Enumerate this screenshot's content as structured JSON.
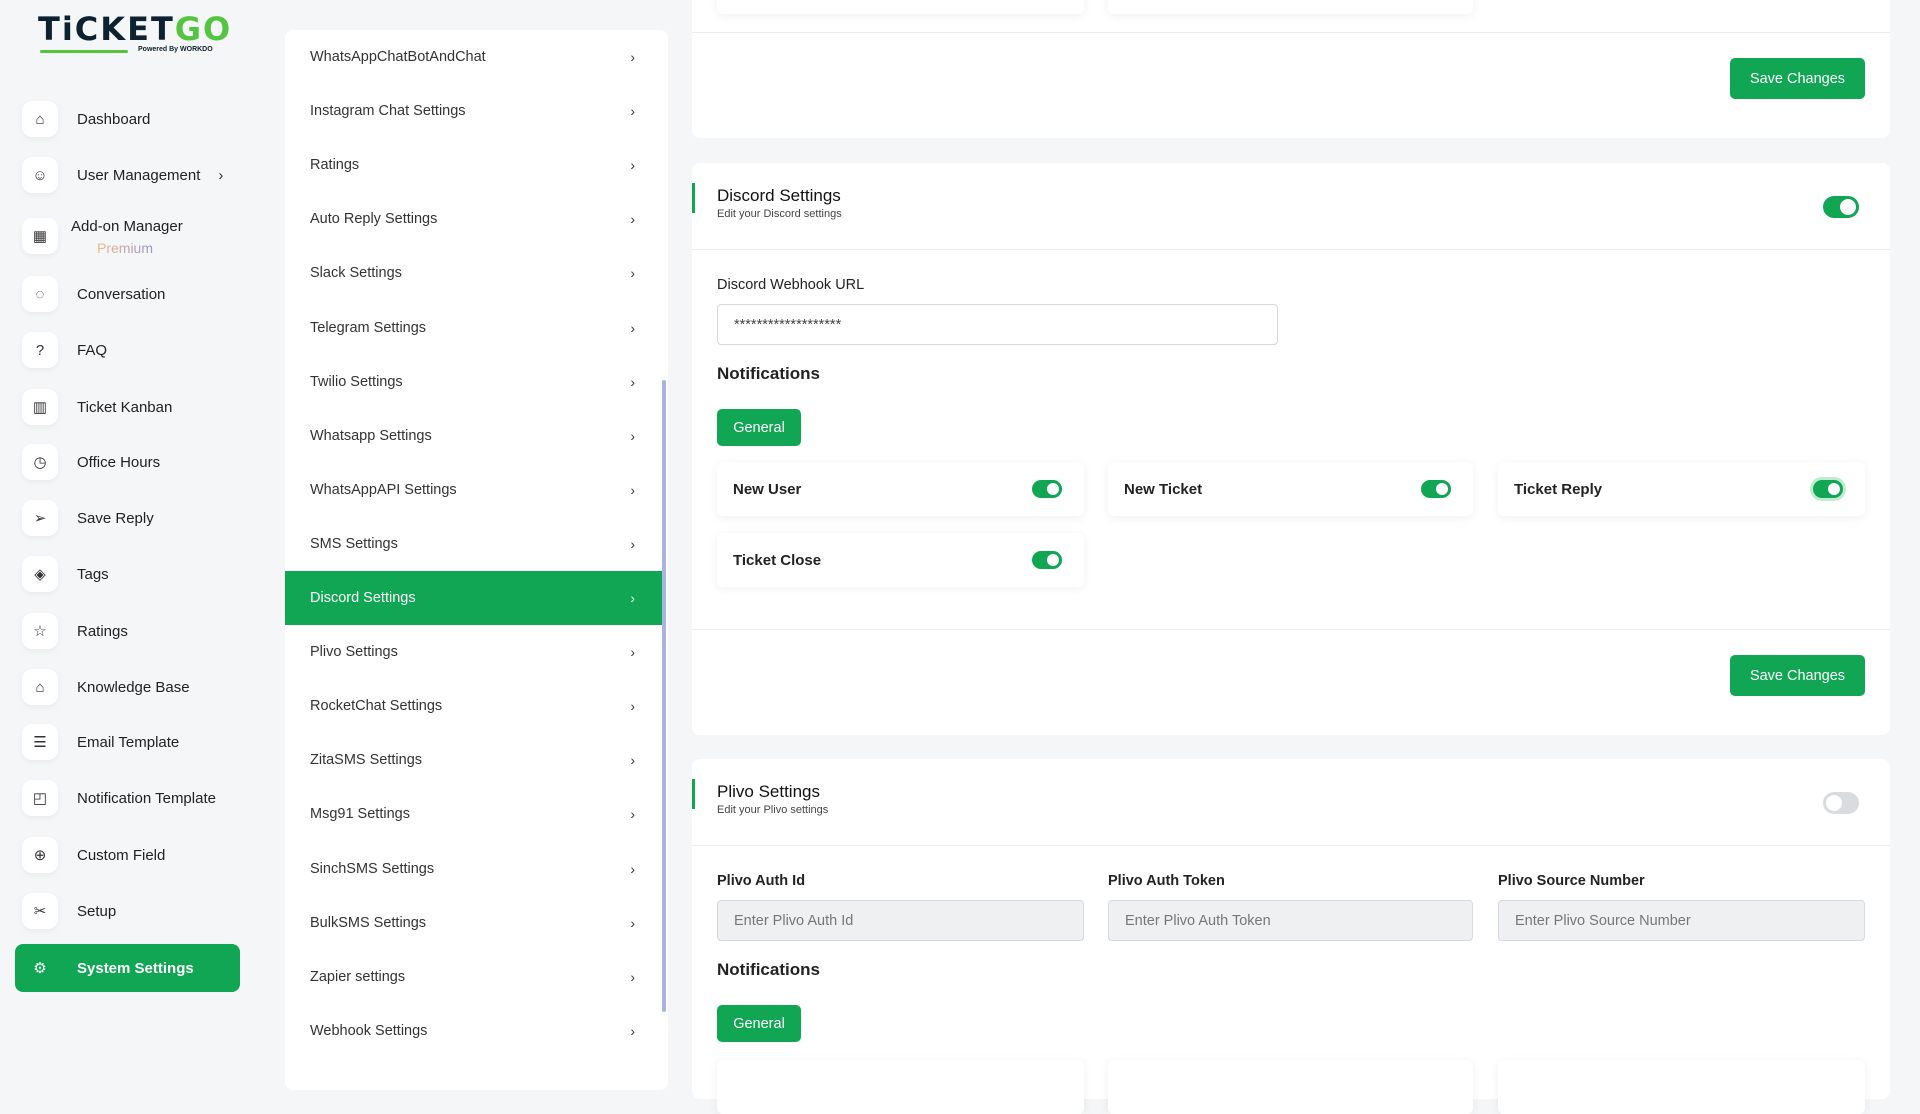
{
  "brand": {
    "name_dark": "TiCKET",
    "name_green": "GO",
    "powered": "Powered By WORKDO"
  },
  "sidebar": {
    "items": [
      {
        "label": "Dashboard",
        "icon": "home-icon"
      },
      {
        "label": "User Management",
        "icon": "users-icon",
        "chevron": true
      },
      {
        "label": "Add-on Manager",
        "badge": "Premium",
        "icon": "grid-icon"
      },
      {
        "label": "Conversation",
        "icon": "chat-icon"
      },
      {
        "label": "FAQ",
        "icon": "question-icon"
      },
      {
        "label": "Ticket Kanban",
        "icon": "kanban-icon"
      },
      {
        "label": "Office Hours",
        "icon": "clock-icon"
      },
      {
        "label": "Save Reply",
        "icon": "send-icon"
      },
      {
        "label": "Tags",
        "icon": "tag-icon"
      },
      {
        "label": "Ratings",
        "icon": "star-icon"
      },
      {
        "label": "Knowledge Base",
        "icon": "graduation-cap-icon"
      },
      {
        "label": "Email Template",
        "icon": "template-icon"
      },
      {
        "label": "Notification Template",
        "icon": "notification-icon"
      },
      {
        "label": "Custom Field",
        "icon": "plus-circle-icon"
      },
      {
        "label": "Setup",
        "icon": "tools-icon"
      },
      {
        "label": "System Settings",
        "icon": "gear-icon",
        "active": true
      }
    ]
  },
  "settings_menu": {
    "items": [
      "WhatsAppChatBotAndChat",
      "Instagram Chat Settings",
      "Ratings",
      "Auto Reply Settings",
      "Slack Settings",
      "Telegram Settings",
      "Twilio Settings",
      "Whatsapp Settings",
      "WhatsAppAPI Settings",
      "SMS Settings",
      "Discord Settings",
      "Plivo Settings",
      "RocketChat Settings",
      "ZitaSMS Settings",
      "Msg91 Settings",
      "SinchSMS Settings",
      "BulkSMS Settings",
      "Zapier settings",
      "Webhook Settings"
    ],
    "active": "Discord Settings"
  },
  "top_card": {
    "save_label": "Save Changes"
  },
  "discord": {
    "title": "Discord Settings",
    "subtitle": "Edit your Discord settings",
    "enabled": true,
    "webhook_label": "Discord Webhook URL",
    "webhook_value": "*******************",
    "notifications_heading": "Notifications",
    "tab_general": "General",
    "notifications": [
      {
        "label": "New User",
        "on": true
      },
      {
        "label": "New Ticket",
        "on": true
      },
      {
        "label": "Ticket Reply",
        "on": true
      },
      {
        "label": "Ticket Close",
        "on": true
      }
    ],
    "save_label": "Save Changes"
  },
  "plivo": {
    "title": "Plivo Settings",
    "subtitle": "Edit your Plivo settings",
    "enabled": false,
    "fields": [
      {
        "label": "Plivo Auth Id",
        "placeholder": "Enter Plivo Auth Id"
      },
      {
        "label": "Plivo Auth Token",
        "placeholder": "Enter Plivo Auth Token"
      },
      {
        "label": "Plivo Source Number",
        "placeholder": "Enter Plivo Source Number"
      }
    ],
    "notifications_heading": "Notifications",
    "tab_general": "General"
  },
  "colors": {
    "accent": "#10a653",
    "background": "#f4f6f7"
  }
}
